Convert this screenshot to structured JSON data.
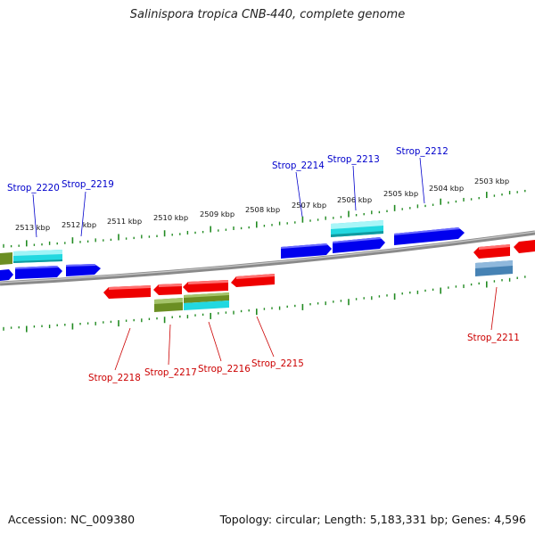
{
  "title": "Salinispora tropica CNB-440, complete genome",
  "accession": "Accession: NC_009380",
  "topology": "Topology: circular; Length: 5,183,331 bp; Genes: 4,596",
  "scale_labels": [
    "2513 kbp",
    "2512 kbp",
    "2511 kbp",
    "2510 kbp",
    "2509 kbp",
    "2508 kbp",
    "2507 kbp",
    "2506 kbp",
    "2505 kbp",
    "2504 kbp",
    "2503 kbp"
  ],
  "top_gene_labels": [
    "Strop_2220",
    "Strop_2219",
    "Strop_2214",
    "Strop_2213",
    "Strop_2212"
  ],
  "bottom_gene_labels": [
    "Strop_2218",
    "Strop_2217",
    "Strop_2216",
    "Strop_2215",
    "Strop_2211"
  ],
  "colors": {
    "forward_cds": "#0000ee",
    "reverse_cds": "#ee0000",
    "cyan_feature": "#22d8e0",
    "olive_feature": "#6b8e23",
    "steel_feature": "#4682b4",
    "backbone": "#808080",
    "ticks": "#228b22",
    "top_label": "#0000cc",
    "bottom_label": "#cc0000"
  }
}
